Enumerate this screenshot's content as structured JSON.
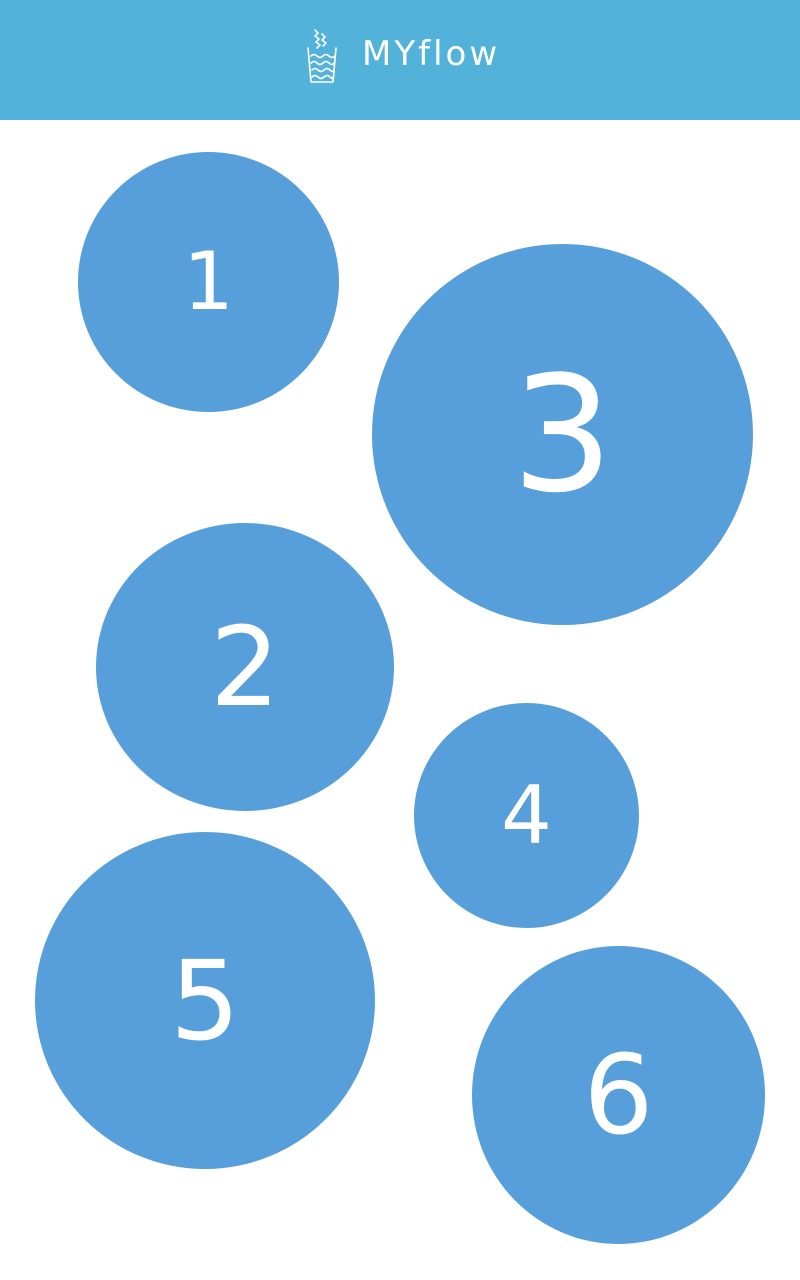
{
  "app": {
    "title": "MYflow",
    "logo_icon": "bin-with-waves-icon"
  },
  "colors": {
    "header_bg": "#52B2D9",
    "circle_bg": "#579FDA",
    "text": "#FFFFFF",
    "page_bg": "#FFFFFF"
  },
  "circles": [
    {
      "label": "1"
    },
    {
      "label": "2"
    },
    {
      "label": "3"
    },
    {
      "label": "4"
    },
    {
      "label": "5"
    },
    {
      "label": "6"
    }
  ]
}
